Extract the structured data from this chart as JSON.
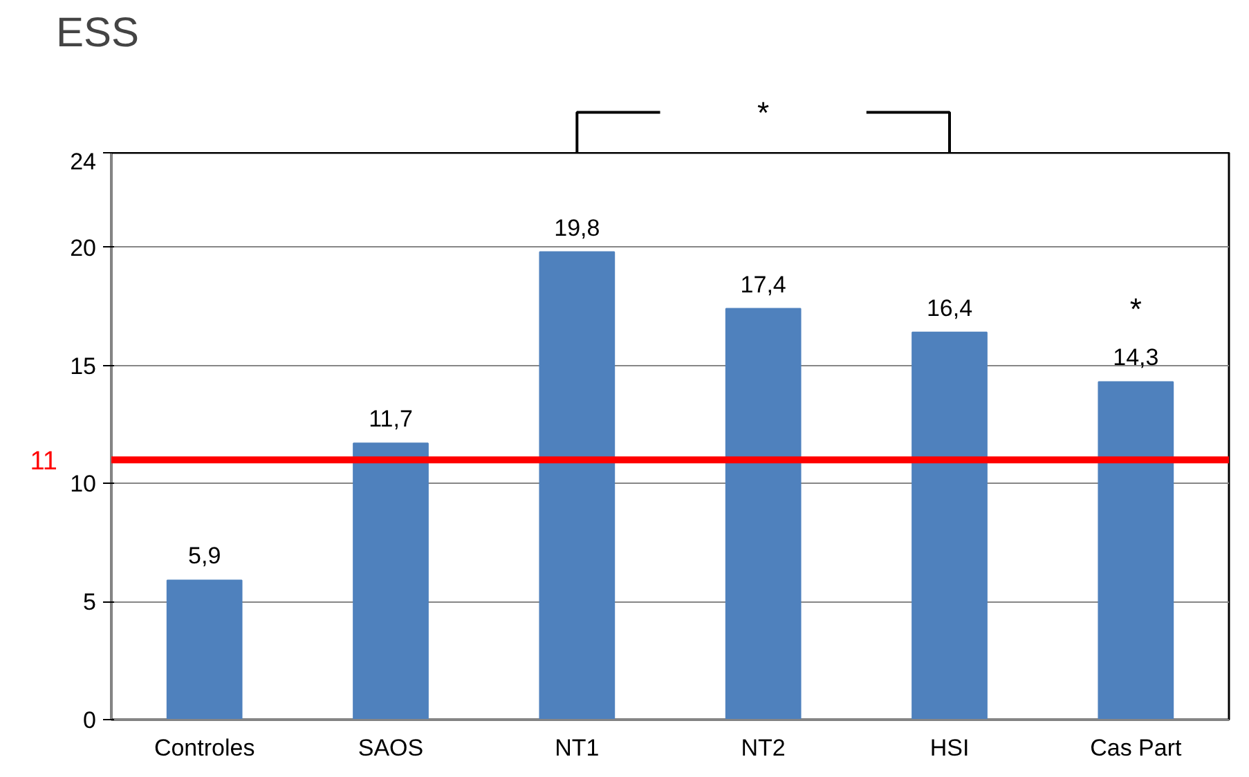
{
  "chart_data": {
    "type": "bar",
    "title": "ESS",
    "categories": [
      "Controles",
      "SAOS",
      "NT1",
      "NT2",
      "HSI",
      "Cas Part"
    ],
    "values": [
      5.9,
      11.7,
      19.8,
      17.4,
      16.4,
      14.3
    ],
    "value_labels": [
      "5,9",
      "11,7",
      "19,8",
      "17,4",
      "16,4",
      "14,3"
    ],
    "color": "#4f81bd",
    "ylim": [
      0,
      24
    ],
    "yticks": [
      0,
      5,
      10,
      15,
      20,
      24
    ],
    "grid": "y",
    "ref_lines": [
      {
        "axis": "y",
        "value": 11,
        "label": "11",
        "color": "#ff0000"
      }
    ],
    "annotations": [
      "*",
      "*"
    ]
  }
}
